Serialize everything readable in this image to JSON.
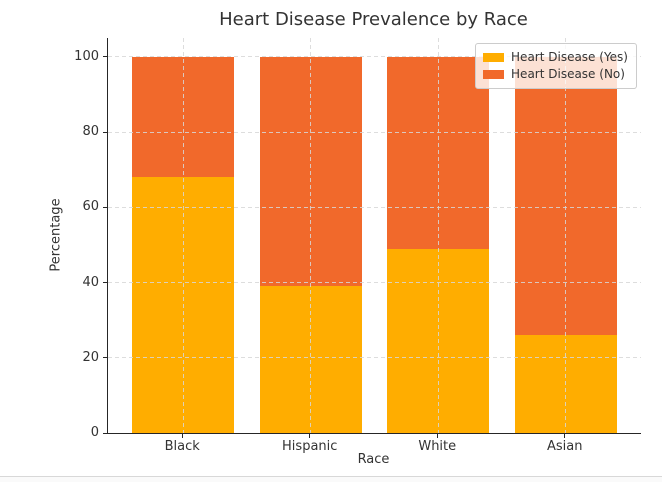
{
  "chart_data": {
    "type": "bar",
    "stacked": true,
    "title": "Heart Disease Prevalence by Race",
    "xlabel": "Race",
    "ylabel": "Percentage",
    "categories": [
      "Black",
      "Hispanic",
      "White",
      "Asian"
    ],
    "series": [
      {
        "name": "Heart Disease (Yes)",
        "color": "#FFAD00",
        "values": [
          68,
          39,
          49,
          26
        ]
      },
      {
        "name": "Heart Disease (No)",
        "color": "#F1692B",
        "values": [
          32,
          61,
          51,
          74
        ]
      }
    ],
    "ylim": [
      0,
      105
    ],
    "yticks": [
      0,
      20,
      40,
      60,
      80,
      100
    ],
    "grid": true,
    "grid_style": "dashed",
    "legend_position": "upper right",
    "colors": {
      "grid": "#d7d7d7",
      "spine": "#262626",
      "text": "#333333",
      "legend_border": "#cccccc"
    }
  }
}
